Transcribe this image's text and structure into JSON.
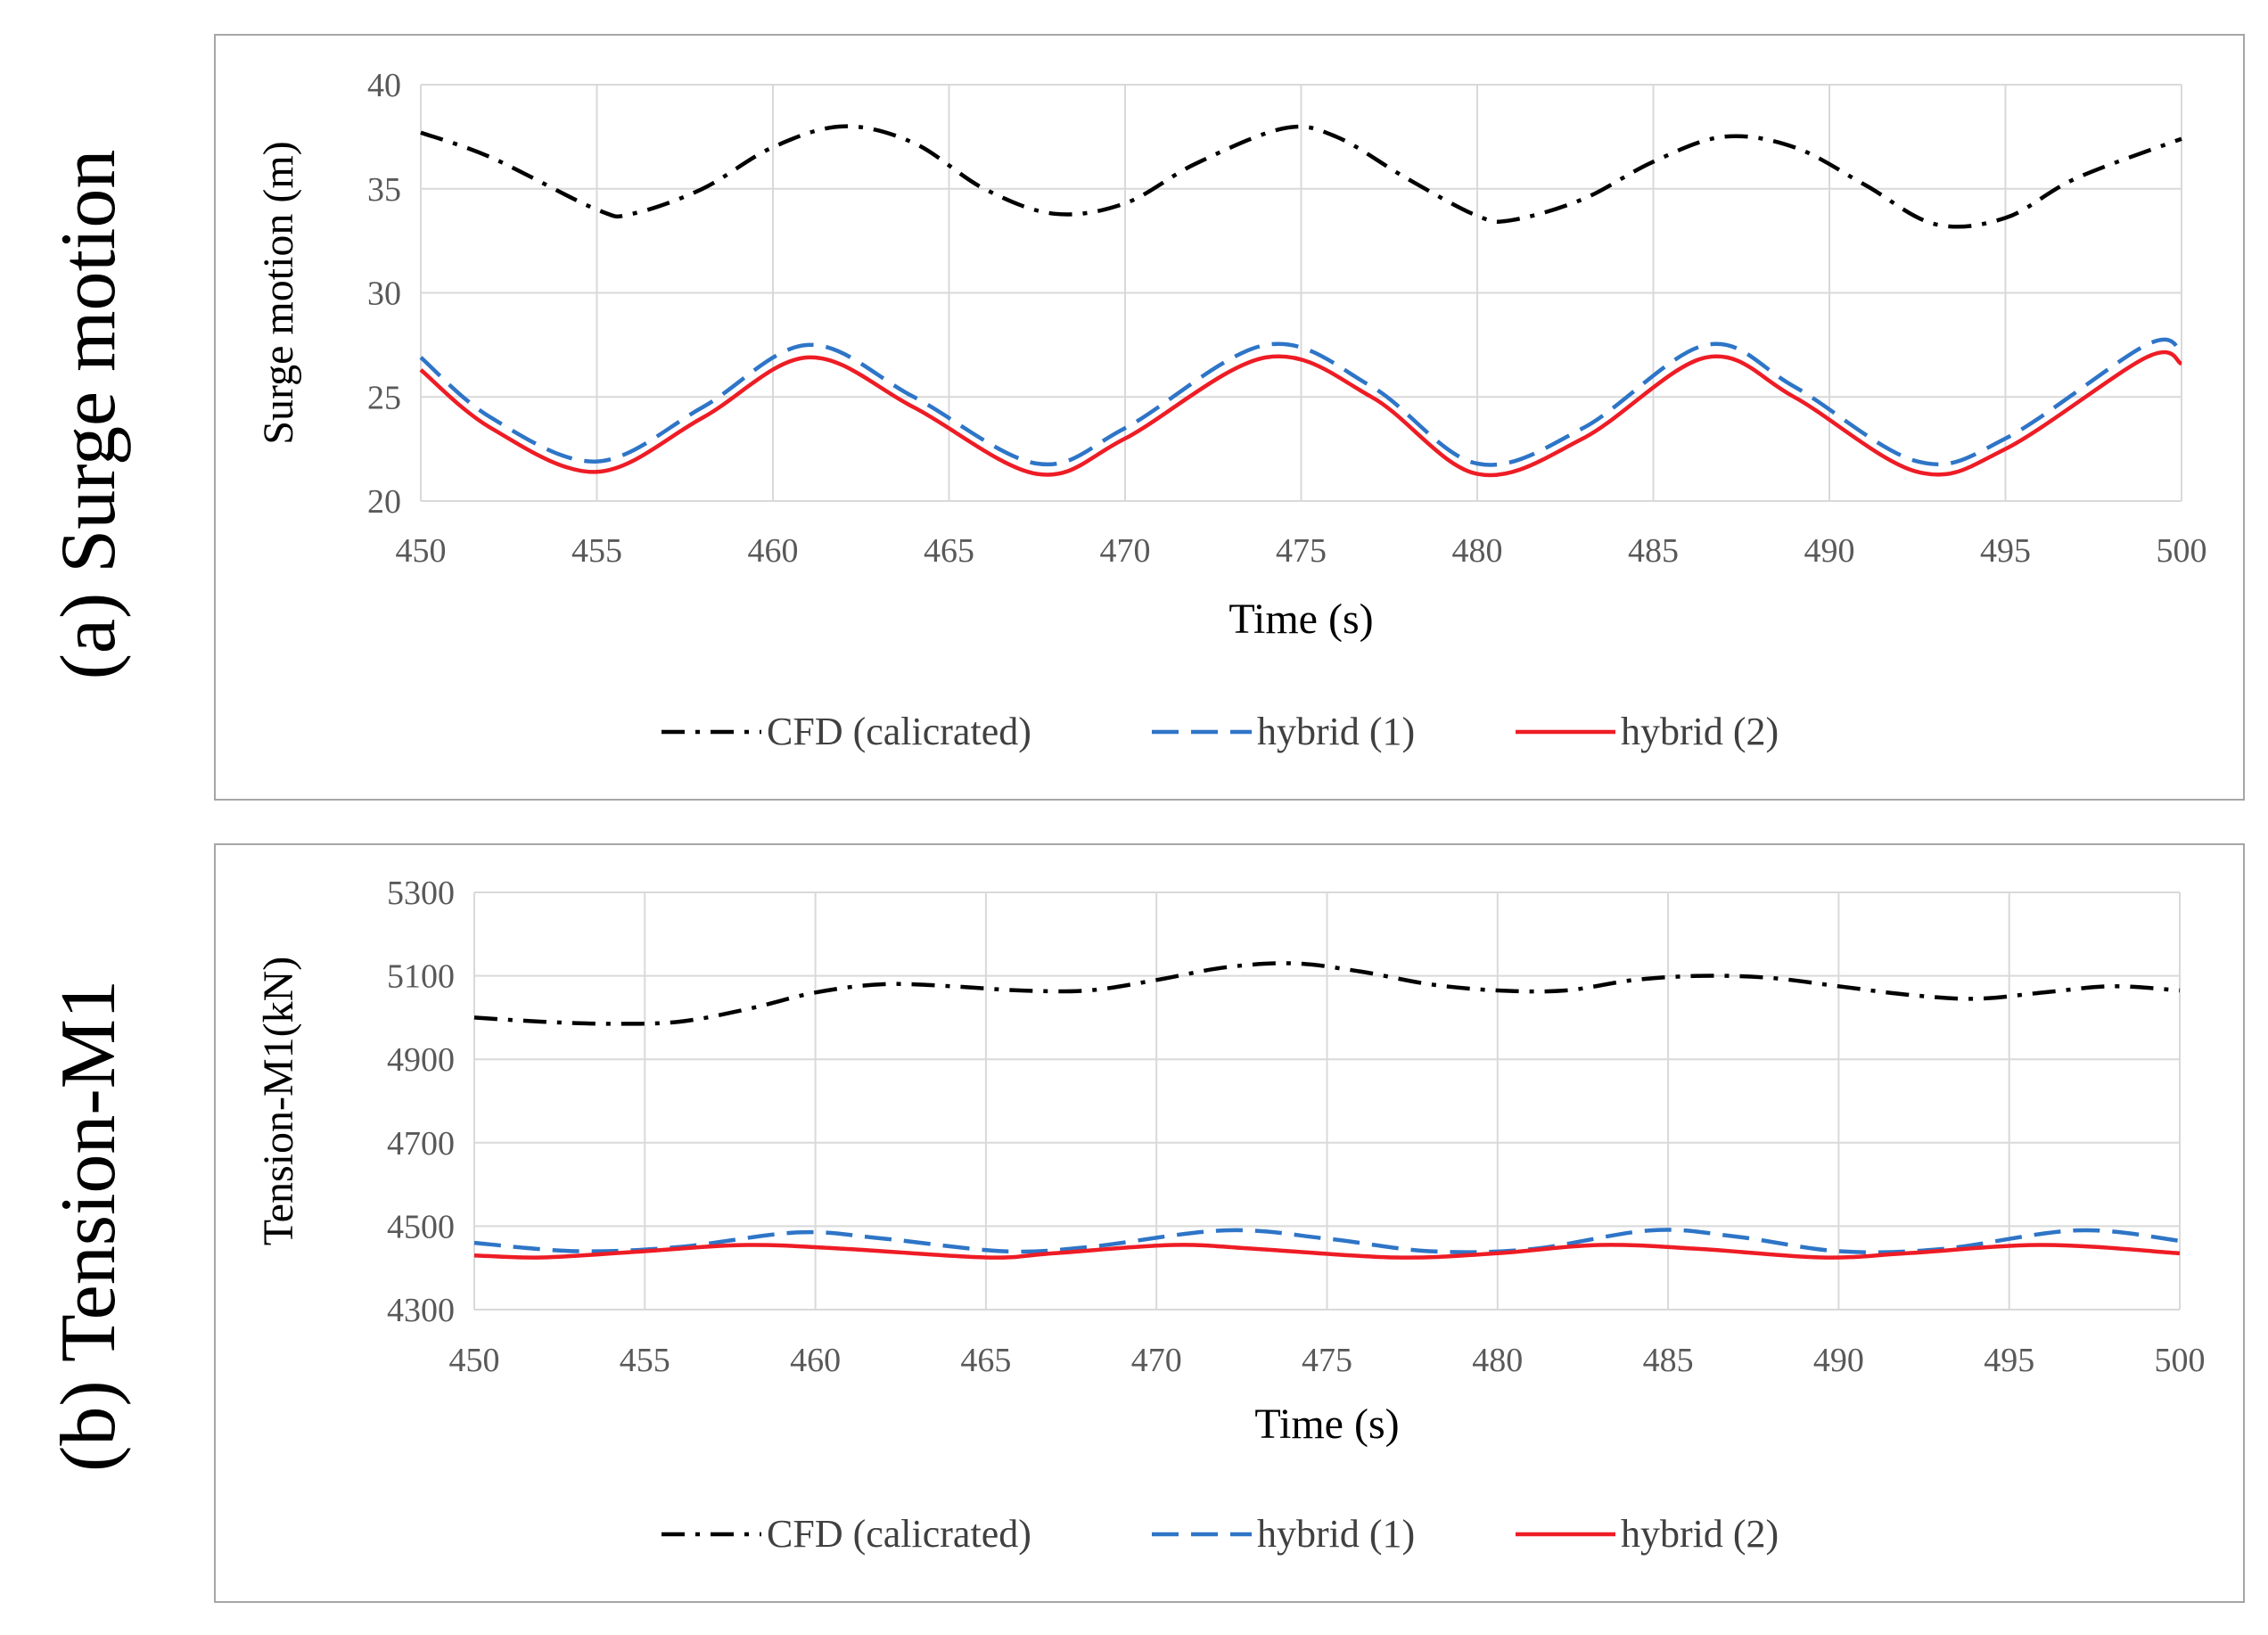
{
  "panels": [
    {
      "label": "(a) Surge motion"
    },
    {
      "label": "(b) Tension-M1"
    }
  ],
  "colors": {
    "cfd": "#000000",
    "hybrid1": "#2e75c7",
    "hybrid2": "#ee1c25",
    "grid": "#d9d9d9"
  },
  "chart_data": [
    {
      "type": "line",
      "title": "",
      "xlabel": "Time (s)",
      "ylabel": "Surge motion (m)",
      "xlim": [
        450,
        500
      ],
      "ylim": [
        20,
        40
      ],
      "xticks": [
        450,
        455,
        460,
        465,
        470,
        475,
        480,
        485,
        490,
        495,
        500
      ],
      "yticks": [
        20,
        25,
        30,
        35,
        40
      ],
      "legend_position": "bottom",
      "series": [
        {
          "name": "CFD (calicrated)",
          "style": "dash-dot",
          "x": [
            450,
            452,
            455,
            456,
            458,
            460,
            462,
            464,
            466,
            468,
            470,
            472,
            474.5,
            476,
            478,
            480,
            481,
            483,
            485,
            487,
            489,
            491,
            493,
            495,
            497,
            500
          ],
          "y": [
            37.7,
            36.5,
            34.0,
            33.8,
            35.0,
            37.0,
            38.0,
            37.2,
            35.0,
            33.8,
            34.3,
            36.2,
            37.9,
            37.5,
            35.5,
            33.7,
            33.5,
            34.5,
            36.3,
            37.5,
            37.0,
            35.2,
            33.3,
            33.6,
            35.5,
            37.4
          ]
        },
        {
          "name": "hybrid (1)",
          "style": "dashed",
          "x": [
            450,
            452,
            455,
            458,
            461,
            464,
            467.5,
            470,
            474,
            477,
            480,
            483,
            486.5,
            489,
            492.5,
            495,
            499,
            500
          ],
          "y": [
            26.9,
            24.0,
            21.9,
            24.5,
            27.5,
            25.0,
            21.8,
            23.5,
            27.5,
            25.5,
            21.8,
            23.5,
            27.5,
            25.5,
            21.9,
            23.0,
            27.5,
            27.2
          ]
        },
        {
          "name": "hybrid (2)",
          "style": "solid",
          "x": [
            450,
            452,
            455,
            458,
            461,
            464,
            467.5,
            470,
            474,
            477,
            480,
            483,
            486.5,
            489,
            492.5,
            495,
            499,
            500
          ],
          "y": [
            26.3,
            23.5,
            21.4,
            24.0,
            26.9,
            24.5,
            21.3,
            23.0,
            26.9,
            25.0,
            21.3,
            23.0,
            26.9,
            25.0,
            21.4,
            22.5,
            26.9,
            26.6
          ]
        }
      ]
    },
    {
      "type": "line",
      "title": "",
      "xlabel": "Time (s)",
      "ylabel": "Tension-M1(kN)",
      "xlim": [
        450,
        500
      ],
      "ylim": [
        4300,
        5300
      ],
      "xticks": [
        450,
        455,
        460,
        465,
        470,
        475,
        480,
        485,
        490,
        495,
        500
      ],
      "yticks": [
        4300,
        4500,
        4700,
        4900,
        5100,
        5300
      ],
      "legend_position": "bottom",
      "series": [
        {
          "name": "CFD (calicrated)",
          "style": "dash-dot",
          "x": [
            450,
            452,
            454,
            456,
            458,
            460,
            462,
            464,
            466,
            468,
            470,
            472,
            474,
            476,
            478,
            480,
            482,
            484,
            486,
            488,
            490,
            492,
            494,
            496,
            498,
            500
          ],
          "y": [
            5000,
            4990,
            4985,
            4990,
            5020,
            5060,
            5080,
            5075,
            5065,
            5065,
            5090,
            5120,
            5130,
            5110,
            5080,
            5065,
            5065,
            5090,
            5100,
            5095,
            5075,
            5055,
            5045,
            5060,
            5075,
            5065
          ]
        },
        {
          "name": "hybrid (1)",
          "style": "dashed",
          "x": [
            450,
            453,
            456,
            459.5,
            462,
            465.5,
            468,
            472,
            475,
            478,
            481,
            484.5,
            487,
            490,
            493,
            497,
            500
          ],
          "y": [
            4460,
            4440,
            4450,
            4485,
            4470,
            4440,
            4450,
            4490,
            4470,
            4440,
            4445,
            4490,
            4475,
            4440,
            4445,
            4490,
            4465
          ]
        },
        {
          "name": "hybrid (2)",
          "style": "solid",
          "x": [
            450,
            452,
            455,
            458,
            461,
            465,
            467,
            470.5,
            473,
            477,
            480,
            483,
            486,
            489.5,
            492,
            496,
            500
          ],
          "y": [
            4430,
            4425,
            4440,
            4455,
            4445,
            4425,
            4435,
            4455,
            4445,
            4425,
            4435,
            4455,
            4445,
            4425,
            4435,
            4455,
            4435
          ]
        }
      ]
    }
  ]
}
